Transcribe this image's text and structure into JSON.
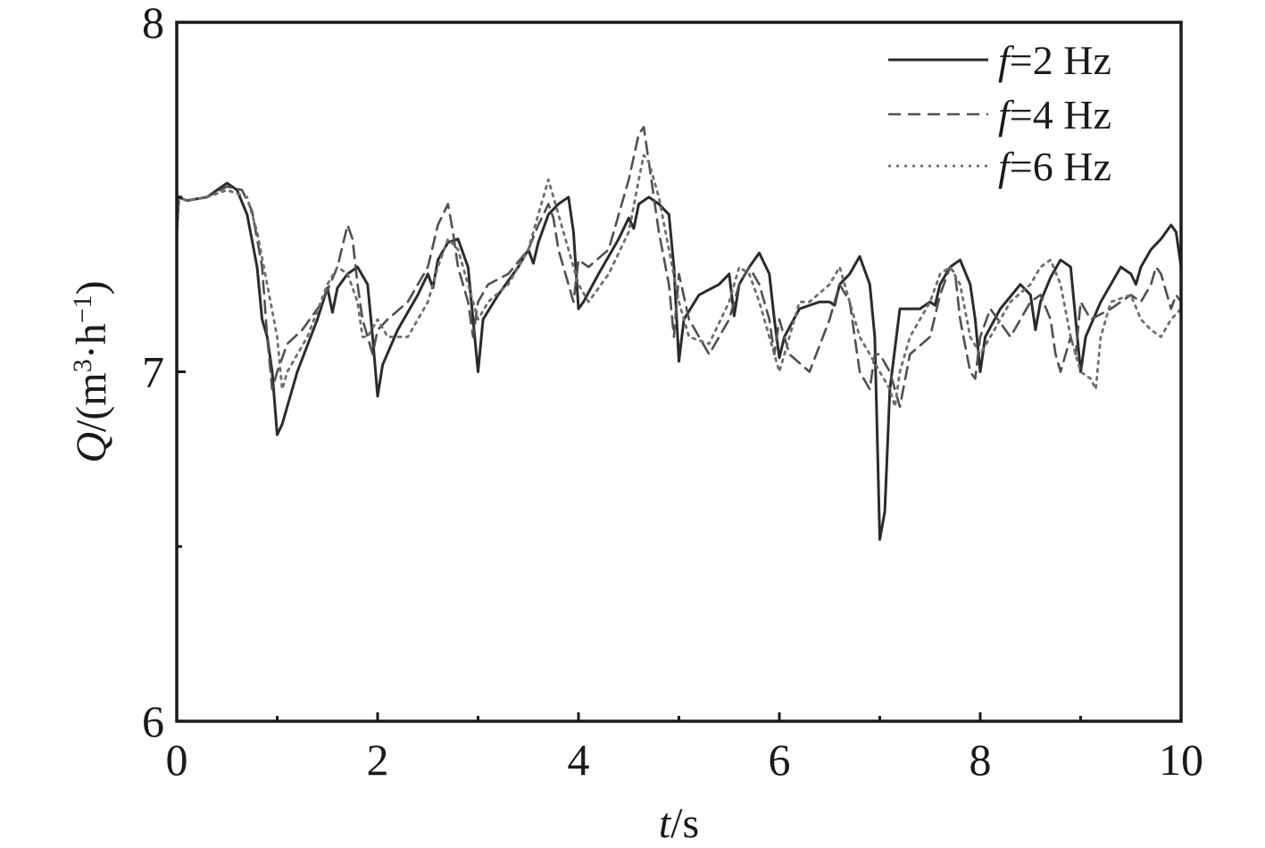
{
  "chart_data": {
    "type": "line",
    "xlabel": {
      "italic": "t",
      "rest": "/s"
    },
    "ylabel": {
      "italic": "Q",
      "rest": "/(m",
      "sup1": "3",
      "mid": "·h",
      "sup2": "−1",
      "end": ")"
    },
    "xlim": [
      0,
      10
    ],
    "ylim": [
      6,
      8
    ],
    "xticks": [
      0,
      2,
      4,
      6,
      8,
      10
    ],
    "xtick_labels": [
      "0",
      "2",
      "4",
      "6",
      "8",
      "10"
    ],
    "xminor_ticks": [
      1,
      3,
      5,
      7,
      9
    ],
    "yticks": [
      6,
      7,
      8
    ],
    "ytick_labels": [
      "6",
      "7",
      "8"
    ],
    "yminor_ticks": [
      6.5,
      7.5
    ],
    "grid": false,
    "legend_position": "top-right",
    "series": [
      {
        "legend_italic": "f",
        "legend_rest": "=2 Hz",
        "style": "solid",
        "color": "#2b2b2b",
        "x": [
          0,
          0.02,
          0.1,
          0.3,
          0.5,
          0.6,
          0.7,
          0.8,
          0.85,
          0.9,
          0.95,
          1.0,
          1.05,
          1.2,
          1.4,
          1.5,
          1.55,
          1.6,
          1.7,
          1.8,
          1.9,
          1.95,
          2.0,
          2.05,
          2.2,
          2.4,
          2.5,
          2.55,
          2.6,
          2.7,
          2.8,
          2.9,
          2.95,
          3.0,
          3.05,
          3.2,
          3.4,
          3.5,
          3.55,
          3.6,
          3.7,
          3.8,
          3.9,
          3.95,
          4.0,
          4.05,
          4.2,
          4.4,
          4.5,
          4.55,
          4.6,
          4.7,
          4.8,
          4.9,
          4.95,
          5.0,
          5.05,
          5.2,
          5.4,
          5.5,
          5.55,
          5.6,
          5.7,
          5.8,
          5.9,
          5.95,
          6.0,
          6.05,
          6.2,
          6.4,
          6.5,
          6.55,
          6.6,
          6.7,
          6.8,
          6.9,
          6.95,
          7.0,
          7.05,
          7.1,
          7.2,
          7.4,
          7.5,
          7.55,
          7.6,
          7.7,
          7.8,
          7.9,
          7.95,
          8.0,
          8.05,
          8.2,
          8.4,
          8.5,
          8.55,
          8.6,
          8.7,
          8.8,
          8.9,
          8.95,
          9.0,
          9.05,
          9.2,
          9.4,
          9.5,
          9.55,
          9.6,
          9.7,
          9.8,
          9.9,
          9.95,
          10.0
        ],
        "y": [
          7.4,
          7.5,
          7.49,
          7.5,
          7.54,
          7.52,
          7.45,
          7.3,
          7.15,
          7.1,
          7.0,
          6.82,
          6.85,
          7.0,
          7.15,
          7.24,
          7.17,
          7.24,
          7.28,
          7.3,
          7.25,
          7.1,
          6.93,
          7.02,
          7.12,
          7.22,
          7.28,
          7.24,
          7.32,
          7.37,
          7.38,
          7.3,
          7.15,
          7.0,
          7.15,
          7.22,
          7.3,
          7.35,
          7.31,
          7.37,
          7.45,
          7.48,
          7.5,
          7.4,
          7.18,
          7.2,
          7.28,
          7.38,
          7.44,
          7.41,
          7.48,
          7.5,
          7.48,
          7.45,
          7.3,
          7.03,
          7.15,
          7.22,
          7.25,
          7.28,
          7.16,
          7.25,
          7.3,
          7.34,
          7.28,
          7.15,
          7.04,
          7.1,
          7.18,
          7.2,
          7.2,
          7.19,
          7.25,
          7.28,
          7.33,
          7.25,
          7.1,
          6.52,
          6.6,
          6.95,
          7.18,
          7.18,
          7.2,
          7.19,
          7.25,
          7.3,
          7.32,
          7.25,
          7.15,
          7.0,
          7.1,
          7.18,
          7.25,
          7.22,
          7.12,
          7.2,
          7.27,
          7.32,
          7.3,
          7.15,
          7.0,
          7.1,
          7.2,
          7.3,
          7.28,
          7.25,
          7.3,
          7.35,
          7.38,
          7.42,
          7.4,
          7.3
        ]
      },
      {
        "legend_italic": "f",
        "legend_rest": "=4 Hz",
        "style": "dashed",
        "color": "#505050",
        "x": [
          0,
          0.02,
          0.1,
          0.3,
          0.5,
          0.65,
          0.75,
          0.85,
          0.9,
          0.95,
          1.0,
          1.1,
          1.25,
          1.45,
          1.6,
          1.7,
          1.75,
          1.8,
          1.85,
          1.9,
          1.95,
          2.0,
          2.1,
          2.3,
          2.5,
          2.6,
          2.7,
          2.75,
          2.8,
          2.9,
          2.95,
          3.0,
          3.1,
          3.3,
          3.5,
          3.6,
          3.7,
          3.75,
          3.8,
          3.9,
          3.95,
          4.0,
          4.1,
          4.3,
          4.5,
          4.6,
          4.65,
          4.7,
          4.75,
          4.8,
          4.9,
          4.95,
          5.0,
          5.1,
          5.3,
          5.5,
          5.6,
          5.7,
          5.8,
          5.9,
          5.95,
          6.0,
          6.1,
          6.3,
          6.5,
          6.6,
          6.7,
          6.75,
          6.8,
          6.9,
          6.95,
          7.0,
          7.1,
          7.2,
          7.3,
          7.5,
          7.6,
          7.7,
          7.75,
          7.8,
          7.9,
          7.95,
          8.0,
          8.1,
          8.3,
          8.5,
          8.6,
          8.7,
          8.75,
          8.8,
          8.9,
          8.95,
          9.0,
          9.1,
          9.3,
          9.5,
          9.6,
          9.7,
          9.75,
          9.8,
          9.9,
          9.95,
          10.0
        ],
        "y": [
          7.4,
          7.5,
          7.49,
          7.5,
          7.53,
          7.52,
          7.46,
          7.3,
          7.1,
          6.95,
          7.0,
          7.08,
          7.12,
          7.2,
          7.3,
          7.42,
          7.38,
          7.25,
          7.15,
          7.1,
          7.05,
          7.12,
          7.15,
          7.2,
          7.3,
          7.42,
          7.48,
          7.4,
          7.3,
          7.2,
          7.1,
          7.2,
          7.25,
          7.28,
          7.35,
          7.42,
          7.48,
          7.44,
          7.35,
          7.25,
          7.2,
          7.32,
          7.3,
          7.35,
          7.55,
          7.68,
          7.7,
          7.6,
          7.5,
          7.4,
          7.25,
          7.1,
          7.28,
          7.15,
          7.05,
          7.15,
          7.25,
          7.3,
          7.25,
          7.15,
          7.05,
          7.15,
          7.05,
          7.0,
          7.15,
          7.25,
          7.2,
          7.1,
          7.0,
          6.95,
          7.05,
          7.05,
          7.0,
          6.9,
          7.05,
          7.1,
          7.22,
          7.3,
          7.28,
          7.15,
          7.0,
          6.98,
          7.1,
          7.18,
          7.1,
          7.2,
          7.22,
          7.15,
          7.05,
          7.0,
          7.1,
          7.05,
          7.2,
          7.15,
          7.18,
          7.22,
          7.2,
          7.25,
          7.3,
          7.28,
          7.18,
          7.22,
          7.2
        ]
      },
      {
        "legend_italic": "f",
        "legend_rest": "=6 Hz",
        "style": "dotted",
        "color": "#6e6e6e",
        "x": [
          0,
          0.02,
          0.1,
          0.3,
          0.5,
          0.7,
          0.8,
          0.9,
          1.0,
          1.05,
          1.1,
          1.3,
          1.5,
          1.6,
          1.7,
          1.8,
          1.85,
          1.9,
          2.0,
          2.1,
          2.3,
          2.5,
          2.6,
          2.7,
          2.8,
          2.9,
          3.0,
          3.1,
          3.3,
          3.5,
          3.6,
          3.7,
          3.8,
          3.9,
          4.0,
          4.1,
          4.3,
          4.5,
          4.6,
          4.65,
          4.7,
          4.8,
          4.9,
          5.0,
          5.1,
          5.3,
          5.5,
          5.6,
          5.7,
          5.8,
          5.9,
          6.0,
          6.1,
          6.2,
          6.3,
          6.5,
          6.6,
          6.7,
          6.8,
          6.9,
          7.0,
          7.1,
          7.15,
          7.2,
          7.3,
          7.5,
          7.6,
          7.7,
          7.8,
          7.9,
          8.0,
          8.1,
          8.3,
          8.5,
          8.6,
          8.7,
          8.8,
          8.9,
          9.0,
          9.1,
          9.15,
          9.2,
          9.3,
          9.5,
          9.6,
          9.7,
          9.8,
          9.9,
          10.0
        ],
        "y": [
          7.4,
          7.5,
          7.49,
          7.5,
          7.52,
          7.5,
          7.4,
          7.25,
          7.1,
          6.95,
          7.0,
          7.1,
          7.25,
          7.3,
          7.28,
          7.2,
          7.1,
          7.1,
          7.15,
          7.1,
          7.1,
          7.2,
          7.3,
          7.38,
          7.35,
          7.25,
          7.15,
          7.2,
          7.25,
          7.35,
          7.45,
          7.55,
          7.45,
          7.35,
          7.25,
          7.2,
          7.28,
          7.4,
          7.55,
          7.62,
          7.6,
          7.5,
          7.35,
          7.2,
          7.1,
          7.08,
          7.2,
          7.3,
          7.28,
          7.2,
          7.1,
          7.0,
          7.1,
          7.2,
          7.2,
          7.25,
          7.3,
          7.2,
          7.1,
          7.05,
          7.0,
          6.95,
          6.9,
          7.0,
          7.1,
          7.2,
          7.28,
          7.3,
          7.25,
          7.1,
          7.05,
          7.1,
          7.2,
          7.25,
          7.3,
          7.32,
          7.25,
          7.1,
          7.0,
          6.98,
          6.95,
          7.1,
          7.2,
          7.22,
          7.15,
          7.12,
          7.1,
          7.15,
          7.18
        ]
      }
    ]
  }
}
